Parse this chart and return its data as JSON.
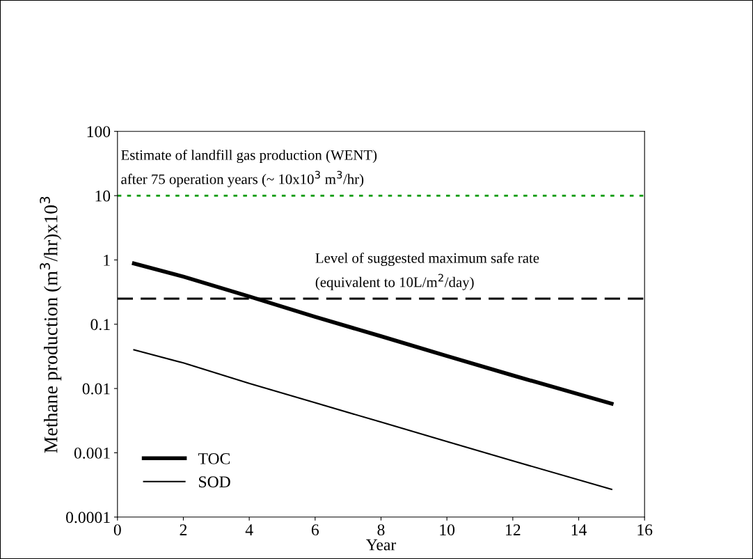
{
  "chart_data": {
    "type": "line",
    "xlabel": "Year",
    "ylabel": "Methane production (m$^{3}$/hr)x10$^{3}$",
    "series": [
      {
        "name": "TOC",
        "color": "#000000",
        "x": [
          0.5,
          2,
          4,
          6,
          8,
          10,
          12,
          15
        ],
        "values": [
          0.88,
          0.55,
          0.27,
          0.13,
          0.065,
          0.032,
          0.016,
          0.0058
        ]
      },
      {
        "name": "SOD",
        "color": "#000000",
        "x": [
          0.5,
          2,
          4,
          6,
          8,
          10,
          12,
          15
        ],
        "values": [
          0.04,
          0.025,
          0.012,
          0.006,
          0.003,
          0.0015,
          0.00075,
          0.00027
        ]
      }
    ],
    "ref_lines": [
      {
        "axis": "y",
        "value": 10,
        "color": "#009900",
        "line_style": "dotted",
        "label": "Estimate of landfill gas production (WENT)\nafter 75 operation years (~ 10x10$^{3}$ m$^{3}$/hr)"
      },
      {
        "axis": "y",
        "value": 0.25,
        "color": "#000000",
        "line_style": "dashed",
        "label": "Level of suggested maximum safe rate\n(equivalent to 10L/m$^{2}$/day)"
      }
    ],
    "log": "y",
    "xlim": [
      0,
      16
    ],
    "xticks": [
      0,
      2,
      4,
      6,
      8,
      10,
      12,
      14,
      16
    ],
    "ylim": [
      0.0001,
      100
    ],
    "yticks": [
      {
        "value": 0.0001,
        "label": "0.0001"
      },
      {
        "value": 0.001,
        "label": "0.001"
      },
      {
        "value": 0.01,
        "label": "0.01"
      },
      {
        "value": 0.1,
        "label": "0.1"
      },
      {
        "value": 1,
        "label": "1"
      },
      {
        "value": 10,
        "label": "10"
      },
      {
        "value": 100,
        "label": "100"
      }
    ],
    "grid": false,
    "legend": "bottom left",
    "marker": "none",
    "line_style": "solid"
  }
}
